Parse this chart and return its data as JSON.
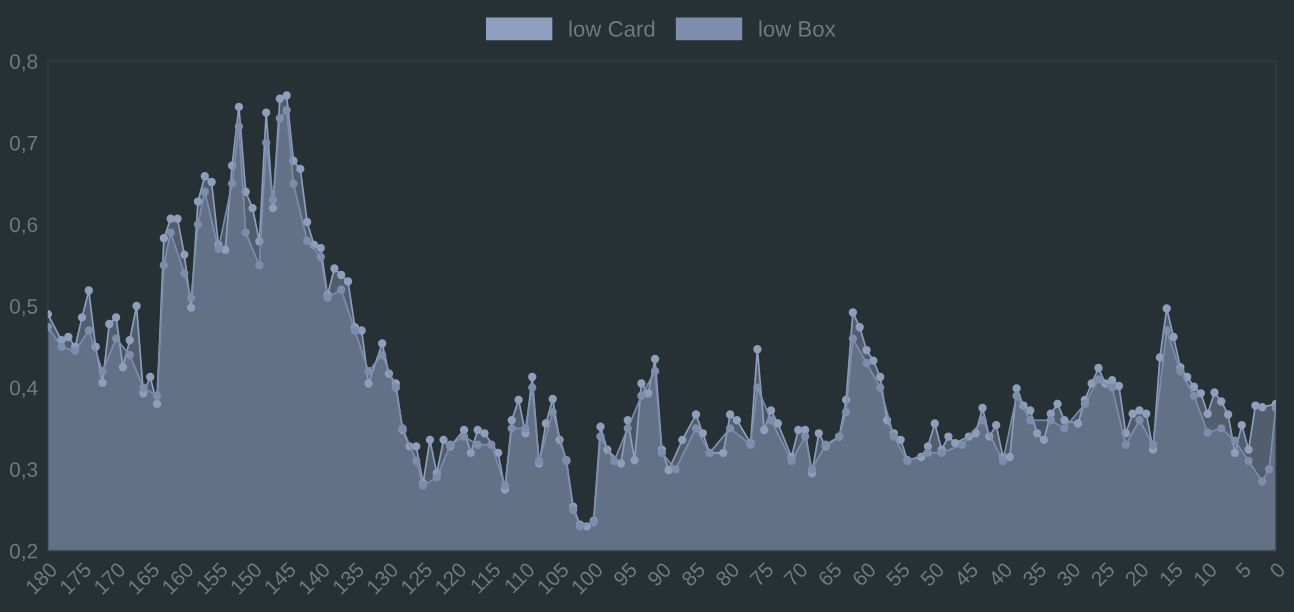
{
  "chart_data": {
    "type": "area",
    "series": [
      {
        "name": "low Card",
        "color": "#8e9fbd",
        "x": [
          180,
          178,
          177,
          176,
          175,
          174,
          173,
          172,
          171,
          170,
          169,
          168,
          167,
          166,
          165,
          164,
          163,
          162,
          161,
          160,
          159,
          158,
          157,
          156,
          155,
          154,
          153,
          152,
          151,
          150,
          149,
          148,
          147,
          146,
          145,
          144,
          143,
          142,
          141,
          140,
          139,
          138,
          137,
          136,
          135,
          134,
          133,
          131,
          130,
          129,
          128,
          127,
          126,
          125,
          124,
          123,
          122,
          121,
          119,
          118,
          117,
          116,
          114,
          113,
          112,
          111,
          110,
          109,
          108,
          107,
          106,
          105,
          104,
          103,
          102,
          101,
          100,
          99,
          98,
          96,
          95,
          94,
          93,
          92,
          91,
          90,
          89,
          87,
          85,
          84,
          83,
          81,
          80,
          79,
          77,
          76,
          75,
          74,
          73,
          71,
          70,
          69,
          68,
          67,
          66,
          64,
          63,
          62,
          61,
          60,
          59,
          58,
          57,
          56,
          55,
          54,
          52,
          51,
          50,
          49,
          48,
          47,
          45,
          44,
          43,
          42,
          41,
          40,
          39,
          38,
          37,
          36,
          35,
          34,
          33,
          32,
          31,
          29,
          28,
          27,
          26,
          25,
          24,
          23,
          22,
          21,
          20,
          19,
          18,
          17,
          16,
          15,
          14,
          13,
          12,
          11,
          10,
          9,
          8,
          7,
          6,
          5,
          4,
          3,
          2,
          0
        ],
        "values": [
          0.49,
          0.458,
          0.462,
          0.45,
          0.486,
          0.519,
          0.45,
          0.406,
          0.478,
          0.486,
          0.425,
          0.458,
          0.5,
          0.393,
          0.413,
          0.38,
          0.583,
          0.607,
          0.607,
          0.563,
          0.498,
          0.628,
          0.659,
          0.652,
          0.575,
          0.569,
          0.672,
          0.744,
          0.64,
          0.62,
          0.579,
          0.737,
          0.62,
          0.754,
          0.758,
          0.678,
          0.668,
          0.603,
          0.575,
          0.571,
          0.514,
          0.546,
          0.538,
          0.53,
          0.474,
          0.47,
          0.405,
          0.454,
          0.417,
          0.405,
          0.348,
          0.328,
          0.328,
          0.283,
          0.336,
          0.295,
          0.336,
          0.328,
          0.348,
          0.32,
          0.348,
          0.344,
          0.32,
          0.275,
          0.36,
          0.385,
          0.344,
          0.413,
          0.307,
          0.356,
          0.386,
          0.336,
          0.311,
          0.254,
          0.232,
          0.23,
          0.237,
          0.352,
          0.324,
          0.307,
          0.36,
          0.311,
          0.405,
          0.393,
          0.435,
          0.324,
          0.299,
          0.336,
          0.367,
          0.344,
          0.32,
          0.32,
          0.367,
          0.36,
          0.332,
          0.447,
          0.348,
          0.372,
          0.356,
          0.315,
          0.348,
          0.348,
          0.295,
          0.344,
          0.328,
          0.34,
          0.385,
          0.492,
          0.474,
          0.446,
          0.433,
          0.413,
          0.36,
          0.344,
          0.336,
          0.311,
          0.315,
          0.328,
          0.356,
          0.324,
          0.34,
          0.332,
          0.34,
          0.344,
          0.375,
          0.34,
          0.354,
          0.315,
          0.315,
          0.399,
          0.378,
          0.372,
          0.344,
          0.336,
          0.368,
          0.38,
          0.36,
          0.356,
          0.385,
          0.405,
          0.424,
          0.405,
          0.409,
          0.402,
          0.344,
          0.368,
          0.372,
          0.368,
          0.324,
          0.437,
          0.497,
          0.462,
          0.425,
          0.413,
          0.401,
          0.393,
          0.368,
          0.394,
          0.383,
          0.367,
          0.32,
          0.354,
          0.324,
          0.378,
          0.376,
          0.38
        ]
      },
      {
        "name": "low Box",
        "color": "#7d8dab",
        "x": [
          180,
          178,
          176,
          174,
          172,
          170,
          168,
          166,
          164,
          163,
          162,
          160,
          159,
          158,
          157,
          155,
          153,
          152,
          151,
          149,
          148,
          147,
          146,
          145,
          144,
          142,
          140,
          139,
          137,
          135,
          133,
          131,
          129,
          128,
          126,
          125,
          123,
          121,
          119,
          117,
          115,
          113,
          112,
          110,
          109,
          108,
          106,
          104,
          103,
          102,
          100,
          99,
          97,
          95,
          93,
          91,
          90,
          88,
          85,
          83,
          80,
          77,
          76,
          74,
          71,
          69,
          68,
          66,
          64,
          63,
          62,
          60,
          58,
          56,
          54,
          51,
          49,
          46,
          43,
          40,
          38,
          36,
          33,
          31,
          28,
          26,
          24,
          22,
          20,
          18,
          16,
          14,
          12,
          10,
          8,
          6,
          4,
          2,
          1,
          0
        ],
        "values": [
          0.474,
          0.45,
          0.445,
          0.47,
          0.42,
          0.46,
          0.44,
          0.4,
          0.39,
          0.55,
          0.59,
          0.54,
          0.51,
          0.6,
          0.64,
          0.57,
          0.65,
          0.72,
          0.59,
          0.55,
          0.7,
          0.63,
          0.73,
          0.74,
          0.65,
          0.58,
          0.56,
          0.51,
          0.52,
          0.47,
          0.42,
          0.44,
          0.4,
          0.35,
          0.31,
          0.28,
          0.29,
          0.33,
          0.34,
          0.33,
          0.33,
          0.28,
          0.35,
          0.35,
          0.4,
          0.31,
          0.37,
          0.31,
          0.25,
          0.23,
          0.235,
          0.34,
          0.31,
          0.35,
          0.39,
          0.42,
          0.32,
          0.3,
          0.35,
          0.32,
          0.35,
          0.33,
          0.4,
          0.36,
          0.31,
          0.34,
          0.3,
          0.33,
          0.34,
          0.37,
          0.46,
          0.43,
          0.4,
          0.34,
          0.31,
          0.32,
          0.32,
          0.33,
          0.36,
          0.31,
          0.39,
          0.36,
          0.36,
          0.35,
          0.38,
          0.41,
          0.4,
          0.33,
          0.36,
          0.33,
          0.47,
          0.42,
          0.39,
          0.345,
          0.35,
          0.335,
          0.31,
          0.285,
          0.3,
          0.375
        ]
      }
    ],
    "xlim": [
      180,
      0
    ],
    "xticks": [
      180,
      175,
      170,
      165,
      160,
      155,
      150,
      145,
      140,
      135,
      130,
      125,
      120,
      115,
      110,
      105,
      100,
      95,
      90,
      85,
      80,
      75,
      70,
      65,
      60,
      55,
      50,
      45,
      40,
      35,
      30,
      25,
      20,
      15,
      10,
      5,
      0
    ],
    "ylim": [
      0.2,
      0.8
    ],
    "yticks": [
      {
        "value": 0.2,
        "label": "0,2"
      },
      {
        "value": 0.3,
        "label": "0,3"
      },
      {
        "value": 0.4,
        "label": "0,4"
      },
      {
        "value": 0.5,
        "label": "0,5"
      },
      {
        "value": 0.6,
        "label": "0,6"
      },
      {
        "value": 0.7,
        "label": "0,7"
      },
      {
        "value": 0.8,
        "label": "0,8"
      }
    ],
    "marker": "circle",
    "grid": false,
    "legend": "top"
  }
}
